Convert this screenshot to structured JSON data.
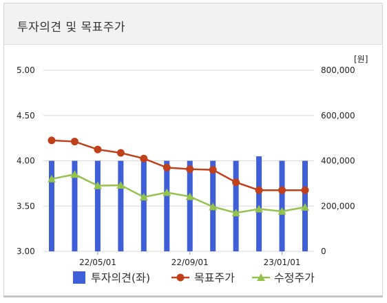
{
  "header": {
    "title": "투자의견 및 목표주가"
  },
  "colors": {
    "bar": "#3f5fd8",
    "target": "#c1401c",
    "price": "#95c24a",
    "grid": "#d9d9d9"
  },
  "chart_data": {
    "type": "bar+line",
    "title": "",
    "y_left": {
      "ylim": [
        3.0,
        5.0
      ],
      "ticks": [
        "3.00",
        "3.50",
        "4.00",
        "4.50",
        "5.00"
      ]
    },
    "y_right": {
      "ylim": [
        0,
        800000
      ],
      "unit": "[원]",
      "ticks": [
        "0",
        "200,000",
        "400,000",
        "600,000",
        "800,000"
      ]
    },
    "x_tick_labels": [
      "22/05/01",
      "22/09/01",
      "23/01/01"
    ],
    "x_ticks_at": [
      2,
      6,
      10
    ],
    "points": 12,
    "series": [
      {
        "name": "투자의견(좌)",
        "axis": "left",
        "kind": "bar",
        "values": [
          4.0,
          4.0,
          4.0,
          4.0,
          4.0,
          4.0,
          4.0,
          4.0,
          4.0,
          4.05,
          4.0,
          4.0
        ]
      },
      {
        "name": "목표주가",
        "axis": "right",
        "kind": "line-circle",
        "values": [
          490000,
          485000,
          450000,
          435000,
          410000,
          370000,
          363000,
          360000,
          305000,
          270000,
          270000,
          270000
        ]
      },
      {
        "name": "수정주가",
        "axis": "right",
        "kind": "line-triangle",
        "values": [
          320000,
          340000,
          290000,
          292000,
          240000,
          260000,
          242000,
          197000,
          170000,
          187000,
          177000,
          195000
        ]
      }
    ],
    "legend": {
      "position": "bottom",
      "items": [
        "투자의견(좌)",
        "목표주가",
        "수정주가"
      ]
    }
  }
}
